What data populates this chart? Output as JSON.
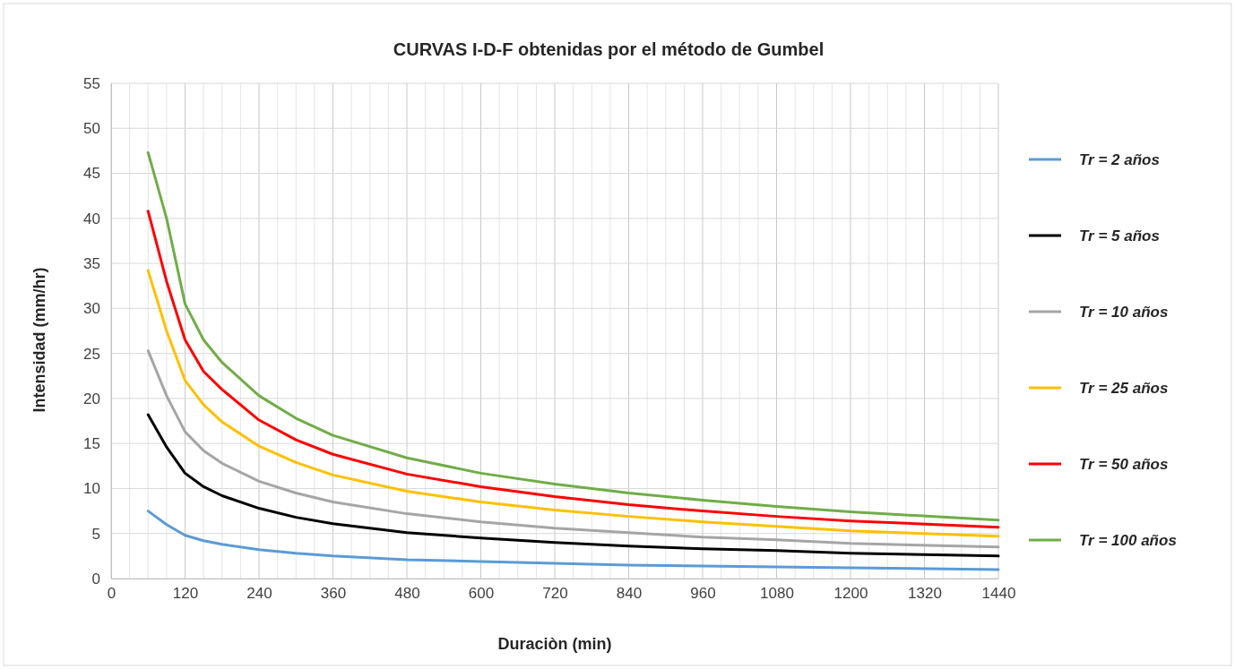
{
  "chart_data": {
    "type": "line",
    "title": "CURVAS I-D-F obtenidas  por el método  de Gumbel",
    "xlabel": "Duraciòn (min)",
    "ylabel": "Intensidad (mm/hr)",
    "x": [
      60,
      90,
      120,
      150,
      180,
      240,
      300,
      360,
      480,
      600,
      720,
      840,
      960,
      1080,
      1200,
      1440
    ],
    "series": [
      {
        "name": "Tr = 2 años",
        "color": "#5b9bd5",
        "values": [
          7.5,
          6.0,
          4.8,
          4.2,
          3.8,
          3.2,
          2.8,
          2.5,
          2.1,
          1.9,
          1.7,
          1.5,
          1.4,
          1.3,
          1.2,
          1.0
        ]
      },
      {
        "name": "Tr = 5 años",
        "color": "#000000",
        "values": [
          18.2,
          14.6,
          11.7,
          10.2,
          9.2,
          7.8,
          6.8,
          6.1,
          5.1,
          4.5,
          4.0,
          3.6,
          3.3,
          3.1,
          2.8,
          2.5
        ]
      },
      {
        "name": "Tr = 10 años",
        "color": "#a5a5a5",
        "values": [
          25.3,
          20.3,
          16.3,
          14.2,
          12.8,
          10.8,
          9.5,
          8.5,
          7.2,
          6.3,
          5.6,
          5.1,
          4.6,
          4.3,
          3.9,
          3.5
        ]
      },
      {
        "name": "Tr = 25 años",
        "color": "#ffc000",
        "values": [
          34.2,
          27.5,
          22.0,
          19.3,
          17.4,
          14.7,
          12.9,
          11.5,
          9.7,
          8.5,
          7.6,
          6.9,
          6.3,
          5.8,
          5.3,
          4.7
        ]
      },
      {
        "name": "Tr = 50 años",
        "color": "#ff0000",
        "values": [
          40.8,
          33.0,
          26.5,
          23.0,
          21.0,
          17.6,
          15.4,
          13.8,
          11.6,
          10.2,
          9.1,
          8.2,
          7.5,
          6.9,
          6.4,
          5.7
        ]
      },
      {
        "name": "Tr = 100 años",
        "color": "#70ad47",
        "values": [
          47.3,
          40.0,
          30.5,
          26.5,
          24.0,
          20.3,
          17.8,
          15.9,
          13.4,
          11.7,
          10.5,
          9.5,
          8.7,
          8.0,
          7.4,
          6.5
        ]
      }
    ],
    "xlim": [
      0,
      1440
    ],
    "xticks": [
      0,
      {
        "value": 30,
        "label": null
      },
      {
        "value": 60,
        "label": null
      },
      {
        "value": 90,
        "label": null
      },
      120,
      {
        "value": 150,
        "label": null
      },
      {
        "value": 180,
        "label": null
      },
      {
        "value": 210,
        "label": null
      },
      240,
      {
        "value": 270,
        "label": null
      },
      {
        "value": 300,
        "label": null
      },
      {
        "value": 330,
        "label": null
      },
      360,
      {
        "value": 390,
        "label": null
      },
      {
        "value": 420,
        "label": null
      },
      {
        "value": 450,
        "label": null
      },
      480,
      {
        "value": 510,
        "label": null
      },
      {
        "value": 540,
        "label": null
      },
      {
        "value": 570,
        "label": null
      },
      600,
      {
        "value": 630,
        "label": null
      },
      {
        "value": 660,
        "label": null
      },
      {
        "value": 690,
        "label": null
      },
      720,
      {
        "value": 750,
        "label": null
      },
      {
        "value": 780,
        "label": null
      },
      {
        "value": 810,
        "label": null
      },
      840,
      {
        "value": 870,
        "label": null
      },
      {
        "value": 900,
        "label": null
      },
      {
        "value": 930,
        "label": null
      },
      960,
      {
        "value": 990,
        "label": null
      },
      {
        "value": 1020,
        "label": null
      },
      {
        "value": 1050,
        "label": null
      },
      1080,
      {
        "value": 1110,
        "label": null
      },
      {
        "value": 1140,
        "label": null
      },
      {
        "value": 1170,
        "label": null
      },
      1200,
      {
        "value": 1230,
        "label": null
      },
      {
        "value": 1260,
        "label": null
      },
      {
        "value": 1290,
        "label": null
      },
      1320,
      {
        "value": 1350,
        "label": null
      },
      {
        "value": 1380,
        "label": null
      },
      {
        "value": 1410,
        "label": null
      },
      1440
    ],
    "ylim": [
      0,
      55
    ],
    "yticks": [
      0,
      5,
      10,
      15,
      20,
      25,
      30,
      35,
      40,
      45,
      50,
      55
    ],
    "grid": true,
    "legend": "right",
    "marker": "none",
    "line_style": "solid"
  }
}
